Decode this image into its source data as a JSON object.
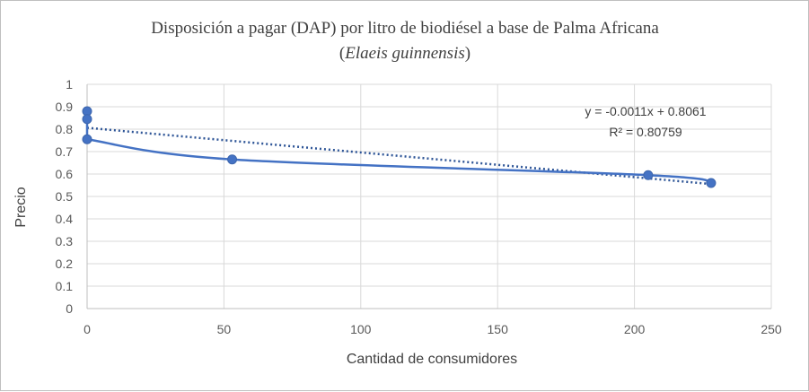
{
  "chart_data": {
    "type": "scatter",
    "title": "Disposición a pagar (DAP) por litro de biodiésel a base de Palma Africana",
    "subtitle_prefix": "(",
    "subtitle_italic": "Elaeis guinnensis",
    "subtitle_suffix": ")",
    "xlabel": "Cantidad de consumidores",
    "ylabel": "Precio",
    "xlim": [
      0,
      250
    ],
    "ylim": [
      0,
      1
    ],
    "x_ticks": [
      "0",
      "50",
      "100",
      "150",
      "200",
      "250"
    ],
    "y_ticks": [
      "0",
      "0.1",
      "0.2",
      "0.3",
      "0.4",
      "0.5",
      "0.6",
      "0.7",
      "0.8",
      "0.9",
      "1"
    ],
    "grid": true,
    "legend": "none",
    "series": [
      {
        "points": [
          {
            "x": 0,
            "y": 0.88
          },
          {
            "x": 0,
            "y": 0.845
          },
          {
            "x": 0,
            "y": 0.755
          },
          {
            "x": 53,
            "y": 0.665
          },
          {
            "x": 205,
            "y": 0.595
          },
          {
            "x": 228,
            "y": 0.56
          }
        ],
        "color": "#4472c4",
        "smoothed_line": true
      }
    ],
    "trendline": {
      "type": "linear",
      "slope": -0.0011,
      "intercept": 0.8061,
      "x_range": [
        0,
        228
      ],
      "color": "#2e5597",
      "style": "dotted",
      "equation_label": "y = -0.0011x + 0.8061",
      "r2_label": "R² = 0.80759"
    }
  }
}
